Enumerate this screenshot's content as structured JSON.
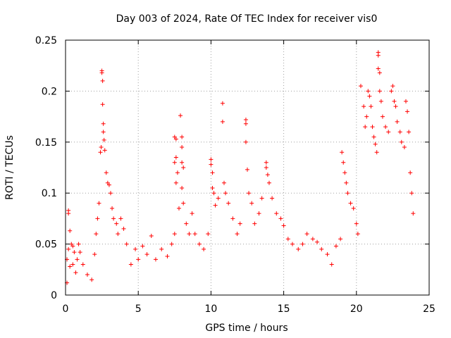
{
  "chart_data": {
    "type": "scatter",
    "title": "Day 003 of 2024, Rate Of TEC Index for receiver vis0",
    "xlabel": "GPS time / hours",
    "ylabel": "ROTI / TECUs",
    "xlim": [
      0,
      25
    ],
    "ylim": [
      0,
      0.25
    ],
    "xticks": [
      "0",
      "5",
      "10",
      "15",
      "20",
      "25"
    ],
    "yticks": [
      "0",
      "0.05",
      "0.1",
      "0.15",
      "0.2",
      "0.25"
    ],
    "grid": true,
    "marker": "plus",
    "color": "#ff0000",
    "series": [
      {
        "name": "ROTI",
        "points": [
          [
            0.1,
            0.012
          ],
          [
            0.1,
            0.035
          ],
          [
            0.2,
            0.045
          ],
          [
            0.3,
            0.028
          ],
          [
            0.4,
            0.05
          ],
          [
            0.5,
            0.03
          ],
          [
            0.6,
            0.042
          ],
          [
            0.7,
            0.022
          ],
          [
            0.8,
            0.035
          ],
          [
            0.2,
            0.083
          ],
          [
            0.2,
            0.08
          ],
          [
            0.3,
            0.063
          ],
          [
            0.5,
            0.048
          ],
          [
            0.9,
            0.05
          ],
          [
            1.0,
            0.042
          ],
          [
            1.2,
            0.03
          ],
          [
            1.5,
            0.02
          ],
          [
            1.8,
            0.015
          ],
          [
            2.0,
            0.04
          ],
          [
            2.1,
            0.06
          ],
          [
            2.2,
            0.075
          ],
          [
            2.3,
            0.09
          ],
          [
            2.4,
            0.14
          ],
          [
            2.45,
            0.145
          ],
          [
            2.5,
            0.22
          ],
          [
            2.5,
            0.218
          ],
          [
            2.55,
            0.21
          ],
          [
            2.55,
            0.187
          ],
          [
            2.6,
            0.168
          ],
          [
            2.6,
            0.16
          ],
          [
            2.65,
            0.152
          ],
          [
            2.7,
            0.142
          ],
          [
            2.8,
            0.12
          ],
          [
            2.9,
            0.11
          ],
          [
            3.0,
            0.108
          ],
          [
            3.1,
            0.1
          ],
          [
            3.2,
            0.085
          ],
          [
            3.3,
            0.075
          ],
          [
            3.5,
            0.07
          ],
          [
            3.6,
            0.06
          ],
          [
            3.8,
            0.075
          ],
          [
            4.0,
            0.065
          ],
          [
            4.2,
            0.05
          ],
          [
            4.5,
            0.03
          ],
          [
            4.8,
            0.045
          ],
          [
            5.0,
            0.035
          ],
          [
            5.3,
            0.048
          ],
          [
            5.6,
            0.04
          ],
          [
            5.9,
            0.058
          ],
          [
            6.2,
            0.035
          ],
          [
            6.6,
            0.045
          ],
          [
            7.0,
            0.038
          ],
          [
            7.3,
            0.05
          ],
          [
            7.5,
            0.06
          ],
          [
            7.5,
            0.155
          ],
          [
            7.6,
            0.153
          ],
          [
            7.6,
            0.135
          ],
          [
            7.5,
            0.13
          ],
          [
            7.6,
            0.11
          ],
          [
            7.7,
            0.12
          ],
          [
            7.8,
            0.085
          ],
          [
            7.9,
            0.176
          ],
          [
            8.0,
            0.155
          ],
          [
            8.0,
            0.145
          ],
          [
            8.0,
            0.13
          ],
          [
            8.1,
            0.125
          ],
          [
            8.0,
            0.105
          ],
          [
            8.1,
            0.09
          ],
          [
            8.3,
            0.07
          ],
          [
            8.5,
            0.06
          ],
          [
            8.7,
            0.08
          ],
          [
            8.9,
            0.06
          ],
          [
            9.2,
            0.05
          ],
          [
            9.5,
            0.045
          ],
          [
            9.8,
            0.06
          ],
          [
            10.0,
            0.133
          ],
          [
            10.0,
            0.128
          ],
          [
            10.1,
            0.12
          ],
          [
            10.1,
            0.105
          ],
          [
            10.2,
            0.1
          ],
          [
            10.3,
            0.088
          ],
          [
            10.5,
            0.095
          ],
          [
            10.8,
            0.188
          ],
          [
            10.8,
            0.17
          ],
          [
            10.9,
            0.11
          ],
          [
            11.0,
            0.1
          ],
          [
            11.2,
            0.09
          ],
          [
            11.5,
            0.075
          ],
          [
            11.8,
            0.06
          ],
          [
            12.0,
            0.07
          ],
          [
            12.4,
            0.172
          ],
          [
            12.4,
            0.168
          ],
          [
            12.4,
            0.15
          ],
          [
            12.5,
            0.123
          ],
          [
            12.6,
            0.1
          ],
          [
            12.8,
            0.09
          ],
          [
            13.0,
            0.07
          ],
          [
            13.3,
            0.08
          ],
          [
            13.5,
            0.095
          ],
          [
            13.8,
            0.13
          ],
          [
            13.8,
            0.125
          ],
          [
            13.9,
            0.118
          ],
          [
            14.0,
            0.11
          ],
          [
            14.2,
            0.095
          ],
          [
            14.5,
            0.08
          ],
          [
            14.8,
            0.075
          ],
          [
            15.0,
            0.068
          ],
          [
            15.3,
            0.055
          ],
          [
            15.6,
            0.05
          ],
          [
            16.0,
            0.045
          ],
          [
            16.3,
            0.05
          ],
          [
            16.6,
            0.06
          ],
          [
            17.0,
            0.055
          ],
          [
            17.3,
            0.052
          ],
          [
            17.6,
            0.045
          ],
          [
            18.0,
            0.04
          ],
          [
            18.3,
            0.03
          ],
          [
            18.6,
            0.048
          ],
          [
            18.9,
            0.055
          ],
          [
            19.0,
            0.14
          ],
          [
            19.1,
            0.13
          ],
          [
            19.2,
            0.12
          ],
          [
            19.3,
            0.11
          ],
          [
            19.4,
            0.1
          ],
          [
            19.6,
            0.09
          ],
          [
            19.8,
            0.085
          ],
          [
            20.0,
            0.07
          ],
          [
            20.1,
            0.06
          ],
          [
            20.3,
            0.205
          ],
          [
            20.5,
            0.185
          ],
          [
            20.6,
            0.165
          ],
          [
            20.7,
            0.175
          ],
          [
            20.8,
            0.2
          ],
          [
            20.9,
            0.195
          ],
          [
            21.0,
            0.185
          ],
          [
            21.1,
            0.165
          ],
          [
            21.2,
            0.155
          ],
          [
            21.3,
            0.148
          ],
          [
            21.4,
            0.14
          ],
          [
            21.5,
            0.238
          ],
          [
            21.5,
            0.235
          ],
          [
            21.5,
            0.222
          ],
          [
            21.6,
            0.218
          ],
          [
            21.6,
            0.2
          ],
          [
            21.7,
            0.19
          ],
          [
            21.8,
            0.175
          ],
          [
            22.0,
            0.165
          ],
          [
            22.2,
            0.16
          ],
          [
            22.4,
            0.2
          ],
          [
            22.5,
            0.205
          ],
          [
            22.6,
            0.19
          ],
          [
            22.7,
            0.185
          ],
          [
            22.8,
            0.17
          ],
          [
            23.0,
            0.16
          ],
          [
            23.1,
            0.15
          ],
          [
            23.3,
            0.145
          ],
          [
            23.4,
            0.19
          ],
          [
            23.5,
            0.18
          ],
          [
            23.6,
            0.16
          ],
          [
            23.7,
            0.12
          ],
          [
            23.8,
            0.1
          ],
          [
            23.9,
            0.08
          ]
        ]
      }
    ]
  }
}
